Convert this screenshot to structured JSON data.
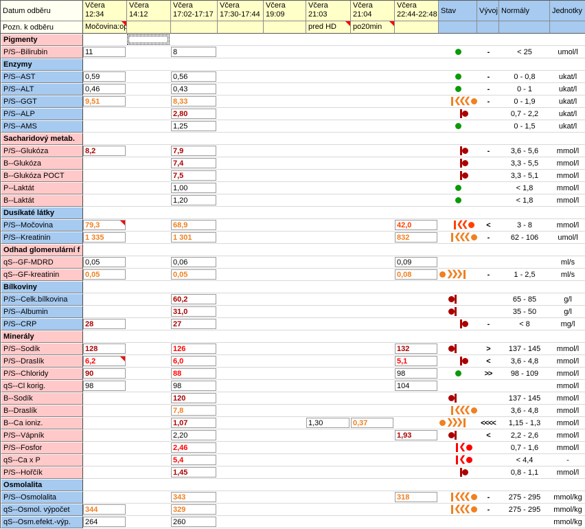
{
  "palette": {
    "black": "#000000",
    "orange": "#f08020",
    "orangered": "#ff4000",
    "red": "#ff0000",
    "darkred": "#aa0000",
    "green": "#0a9a0a",
    "marker": "#ff0000",
    "header_yellow": "#ffffc8",
    "header_blue": "#a6caf0",
    "tint_pink": "#ffc9c9",
    "tint_blue": "#a6caf0"
  },
  "table": {
    "header": {
      "date_label": "Datum odběru",
      "note_label": "Pozn. k odběru",
      "date_columns": [
        {
          "key": "c1",
          "line1": "Včera",
          "line2": "12:34"
        },
        {
          "key": "c2",
          "line1": "Včera",
          "line2": "14:12"
        },
        {
          "key": "c3",
          "line1": "Včera",
          "line2": "17:02-17:17"
        },
        {
          "key": "c4",
          "line1": "Včera",
          "line2": "17:30-17:44"
        },
        {
          "key": "c5",
          "line1": "Včera",
          "line2": "19:09"
        },
        {
          "key": "c6",
          "line1": "Včera",
          "line2": "21:03"
        },
        {
          "key": "c7",
          "line1": "Včera",
          "line2": "21:04"
        },
        {
          "key": "c8",
          "line1": "Včera",
          "line2": "22:44-22:48"
        }
      ],
      "meta_columns": [
        "Stav",
        "Vývoj",
        "Normály",
        "Jednotky"
      ]
    },
    "note_row": {
      "c1": {
        "text": "Močovina:op",
        "marker": true
      },
      "c6": {
        "text": "pred HD",
        "marker": true
      },
      "c7": {
        "text": "po20min",
        "marker": true
      }
    },
    "selection": {
      "row": "Pigmenty",
      "column": "c2"
    },
    "rows": [
      {
        "type": "section",
        "label": "Pigmenty",
        "tint": "pink"
      },
      {
        "type": "analyte",
        "label": "P/S--Bilirubin",
        "tint": "pink",
        "values": {
          "c1": {
            "text": "11",
            "color": "black"
          },
          "c3": {
            "text": "8",
            "color": "black"
          }
        },
        "stav": {
          "style": "ok"
        },
        "vyvoj": "-",
        "normal": "< 25",
        "unit": "umol/l"
      },
      {
        "type": "section",
        "label": "Enzymy",
        "tint": "blue"
      },
      {
        "type": "analyte",
        "label": "P/S--AST",
        "tint": "blue",
        "values": {
          "c1": {
            "text": "0,59",
            "color": "black"
          },
          "c3": {
            "text": "0,56",
            "color": "black"
          }
        },
        "stav": {
          "style": "ok"
        },
        "vyvoj": "-",
        "normal": "0 - 0,8",
        "unit": "ukat/l"
      },
      {
        "type": "analyte",
        "label": "P/S--ALT",
        "tint": "blue",
        "values": {
          "c1": {
            "text": "0,46",
            "color": "black"
          },
          "c3": {
            "text": "0,43",
            "color": "black"
          }
        },
        "stav": {
          "style": "ok"
        },
        "vyvoj": "-",
        "normal": "0 - 1",
        "unit": "ukat/l"
      },
      {
        "type": "analyte",
        "label": "P/S--GGT",
        "tint": "blue",
        "values": {
          "c1": {
            "text": "9,51",
            "color": "orange"
          },
          "c3": {
            "text": "8,33",
            "color": "orange"
          }
        },
        "stav": {
          "style": "gauge",
          "dir": "above",
          "chevrons": 3,
          "color": "orange"
        },
        "vyvoj": "-",
        "normal": "0 - 1,9",
        "unit": "ukat/l"
      },
      {
        "type": "analyte",
        "label": "P/S--ALP",
        "tint": "blue",
        "values": {
          "c3": {
            "text": "2,80",
            "color": "darkred"
          }
        },
        "stav": {
          "style": "gauge",
          "dir": "above",
          "chevrons": 0,
          "color": "darkred"
        },
        "vyvoj": "",
        "normal": "0,7 - 2,2",
        "unit": "ukat/l"
      },
      {
        "type": "analyte",
        "label": "P/S--AMS",
        "tint": "blue",
        "values": {
          "c3": {
            "text": "1,25",
            "color": "black"
          }
        },
        "stav": {
          "style": "ok"
        },
        "vyvoj": "",
        "normal": "0 - 1,5",
        "unit": "ukat/l"
      },
      {
        "type": "section",
        "label": "Sacharidový metab.",
        "tint": "pink"
      },
      {
        "type": "analyte",
        "label": "P/S--Glukóza",
        "tint": "pink",
        "values": {
          "c1": {
            "text": "8,2",
            "color": "darkred"
          },
          "c3": {
            "text": "7,9",
            "color": "darkred"
          }
        },
        "stav": {
          "style": "gauge",
          "dir": "above",
          "chevrons": 0,
          "color": "darkred"
        },
        "vyvoj": "-",
        "normal": "3,6 - 5,6",
        "unit": "mmol/l"
      },
      {
        "type": "analyte",
        "label": "B--Glukóza",
        "tint": "pink",
        "values": {
          "c3": {
            "text": "7,4",
            "color": "darkred"
          }
        },
        "stav": {
          "style": "gauge",
          "dir": "above",
          "chevrons": 0,
          "color": "darkred"
        },
        "vyvoj": "",
        "normal": "3,3 - 5,5",
        "unit": "mmol/l"
      },
      {
        "type": "analyte",
        "label": "B--Glukóza POCT",
        "tint": "pink",
        "values": {
          "c3": {
            "text": "7,5",
            "color": "darkred"
          }
        },
        "stav": {
          "style": "gauge",
          "dir": "above",
          "chevrons": 0,
          "color": "darkred"
        },
        "vyvoj": "",
        "normal": "3,3 - 5,1",
        "unit": "mmol/l"
      },
      {
        "type": "analyte",
        "label": "P--Laktát",
        "tint": "pink",
        "values": {
          "c3": {
            "text": "1,00",
            "color": "black"
          }
        },
        "stav": {
          "style": "ok"
        },
        "vyvoj": "",
        "normal": "< 1,8",
        "unit": "mmol/l"
      },
      {
        "type": "analyte",
        "label": "B--Laktát",
        "tint": "pink",
        "values": {
          "c3": {
            "text": "1,20",
            "color": "black"
          }
        },
        "stav": {
          "style": "ok"
        },
        "vyvoj": "",
        "normal": "< 1,8",
        "unit": "mmol/l"
      },
      {
        "type": "section",
        "label": "Dusíkaté látky",
        "tint": "blue"
      },
      {
        "type": "analyte",
        "label": "P/S--Močovina",
        "tint": "blue",
        "values": {
          "c1": {
            "text": "79,3",
            "color": "orange",
            "marker": true
          },
          "c3": {
            "text": "68,9",
            "color": "orange"
          },
          "c8": {
            "text": "42,0",
            "color": "orangered"
          }
        },
        "stav": {
          "style": "gauge",
          "dir": "above",
          "chevrons": 2,
          "color": "orangered"
        },
        "vyvoj": "<",
        "normal": "3 - 8",
        "unit": "mmol/l"
      },
      {
        "type": "analyte",
        "label": "P/S--Kreatinin",
        "tint": "blue",
        "values": {
          "c1": {
            "text": "1 335",
            "color": "orange"
          },
          "c3": {
            "text": "1 301",
            "color": "orange"
          },
          "c8": {
            "text": "832",
            "color": "orange"
          }
        },
        "stav": {
          "style": "gauge",
          "dir": "above",
          "chevrons": 3,
          "color": "orange"
        },
        "vyvoj": "-",
        "normal": "62 - 106",
        "unit": "umol/l"
      },
      {
        "type": "section",
        "label": "Odhad glomerulární f",
        "tint": "pink"
      },
      {
        "type": "analyte",
        "label": "qS--GF-MDRD",
        "tint": "pink",
        "values": {
          "c1": {
            "text": "0,05",
            "color": "black"
          },
          "c3": {
            "text": "0,06",
            "color": "black"
          },
          "c8": {
            "text": "0,09",
            "color": "black"
          }
        },
        "stav": null,
        "vyvoj": "",
        "normal": "",
        "unit": "ml/s"
      },
      {
        "type": "analyte",
        "label": "qS--GF-kreatinin",
        "tint": "pink",
        "values": {
          "c1": {
            "text": "0,05",
            "color": "orange"
          },
          "c3": {
            "text": "0,05",
            "color": "orange"
          },
          "c8": {
            "text": "0,08",
            "color": "orange"
          }
        },
        "stav": {
          "style": "gauge",
          "dir": "below",
          "chevrons": 3,
          "color": "orange"
        },
        "vyvoj": "-",
        "normal": "1 - 2,5",
        "unit": "ml/s"
      },
      {
        "type": "section",
        "label": "Bílkoviny",
        "tint": "blue"
      },
      {
        "type": "analyte",
        "label": "P/S--Celk.bílkovina",
        "tint": "blue",
        "values": {
          "c3": {
            "text": "60,2",
            "color": "darkred"
          }
        },
        "stav": {
          "style": "gauge",
          "dir": "below",
          "chevrons": 0,
          "color": "darkred"
        },
        "vyvoj": "",
        "normal": "65 - 85",
        "unit": "g/l"
      },
      {
        "type": "analyte",
        "label": "P/S--Albumin",
        "tint": "blue",
        "values": {
          "c3": {
            "text": "31,0",
            "color": "darkred"
          }
        },
        "stav": {
          "style": "gauge",
          "dir": "below",
          "chevrons": 0,
          "color": "darkred"
        },
        "vyvoj": "",
        "normal": "35 - 50",
        "unit": "g/l"
      },
      {
        "type": "analyte",
        "label": "P/S--CRP",
        "tint": "blue",
        "values": {
          "c1": {
            "text": "28",
            "color": "darkred"
          },
          "c3": {
            "text": "27",
            "color": "darkred"
          }
        },
        "stav": {
          "style": "gauge",
          "dir": "above",
          "chevrons": 0,
          "color": "darkred"
        },
        "vyvoj": "-",
        "normal": "< 8",
        "unit": "mg/l"
      },
      {
        "type": "section",
        "label": "Minerály",
        "tint": "pink"
      },
      {
        "type": "analyte",
        "label": "P/S--Sodík",
        "tint": "pink",
        "values": {
          "c1": {
            "text": "128",
            "color": "darkred"
          },
          "c3": {
            "text": "126",
            "color": "red"
          },
          "c8": {
            "text": "132",
            "color": "darkred"
          }
        },
        "stav": {
          "style": "gauge",
          "dir": "below",
          "chevrons": 0,
          "color": "darkred"
        },
        "vyvoj": ">",
        "normal": "137 - 145",
        "unit": "mmol/l"
      },
      {
        "type": "analyte",
        "label": "P/S--Draslík",
        "tint": "pink",
        "values": {
          "c1": {
            "text": "6,2",
            "color": "red",
            "marker": true
          },
          "c3": {
            "text": "6,0",
            "color": "red"
          },
          "c8": {
            "text": "5,1",
            "color": "red"
          }
        },
        "stav": {
          "style": "gauge",
          "dir": "above",
          "chevrons": 0,
          "color": "darkred"
        },
        "vyvoj": "<",
        "normal": "3,6 - 4,8",
        "unit": "mmol/l"
      },
      {
        "type": "analyte",
        "label": "P/S--Chloridy",
        "tint": "pink",
        "values": {
          "c1": {
            "text": "90",
            "color": "darkred"
          },
          "c3": {
            "text": "88",
            "color": "red"
          },
          "c8": {
            "text": "98",
            "color": "black"
          }
        },
        "stav": {
          "style": "ok"
        },
        "vyvoj": ">>",
        "normal": "98 - 109",
        "unit": "mmol/l"
      },
      {
        "type": "analyte",
        "label": "qS--Cl korig.",
        "tint": "pink",
        "values": {
          "c1": {
            "text": "98",
            "color": "black"
          },
          "c3": {
            "text": "98",
            "color": "black"
          },
          "c8": {
            "text": "104",
            "color": "black"
          }
        },
        "stav": null,
        "vyvoj": "",
        "normal": "",
        "unit": "mmol/l"
      },
      {
        "type": "analyte",
        "label": "B--Sodík",
        "tint": "pink",
        "values": {
          "c3": {
            "text": "120",
            "color": "darkred"
          }
        },
        "stav": {
          "style": "gauge",
          "dir": "below",
          "chevrons": 0,
          "color": "darkred"
        },
        "vyvoj": "",
        "normal": "137 - 145",
        "unit": "mmol/l"
      },
      {
        "type": "analyte",
        "label": "B--Draslík",
        "tint": "pink",
        "values": {
          "c3": {
            "text": "7,8",
            "color": "orange"
          }
        },
        "stav": {
          "style": "gauge",
          "dir": "above",
          "chevrons": 3,
          "color": "orange"
        },
        "vyvoj": "",
        "normal": "3,6 - 4,8",
        "unit": "mmol/l"
      },
      {
        "type": "analyte",
        "label": "B--Ca ioniz.",
        "tint": "pink",
        "values": {
          "c3": {
            "text": "1,07",
            "color": "darkred"
          },
          "c6": {
            "text": "1,30",
            "color": "black"
          },
          "c7": {
            "text": "0,37",
            "color": "orange"
          }
        },
        "stav": {
          "style": "gauge",
          "dir": "below",
          "chevrons": 3,
          "color": "orange"
        },
        "vyvoj": "<<<<",
        "normal": "1,15 - 1,3",
        "unit": "mmol/l"
      },
      {
        "type": "analyte",
        "label": "P/S--Vápník",
        "tint": "pink",
        "values": {
          "c3": {
            "text": "2,20",
            "color": "black"
          },
          "c8": {
            "text": "1,93",
            "color": "darkred"
          }
        },
        "stav": {
          "style": "gauge",
          "dir": "below",
          "chevrons": 0,
          "color": "darkred"
        },
        "vyvoj": "<",
        "normal": "2,2 - 2,6",
        "unit": "mmol/l"
      },
      {
        "type": "analyte",
        "label": "P/S--Fosfor",
        "tint": "pink",
        "values": {
          "c3": {
            "text": "2,46",
            "color": "red"
          }
        },
        "stav": {
          "style": "gauge",
          "dir": "above",
          "chevrons": 1,
          "color": "red"
        },
        "vyvoj": "",
        "normal": "0,7 - 1,6",
        "unit": "mmol/l"
      },
      {
        "type": "analyte",
        "label": "qS--Ca x P",
        "tint": "pink",
        "values": {
          "c3": {
            "text": "5,4",
            "color": "red"
          }
        },
        "stav": {
          "style": "gauge",
          "dir": "above",
          "chevrons": 1,
          "color": "red"
        },
        "vyvoj": "",
        "normal": "< 4,4",
        "unit": "-"
      },
      {
        "type": "analyte",
        "label": "P/S--Hořčík",
        "tint": "pink",
        "values": {
          "c3": {
            "text": "1,45",
            "color": "darkred"
          }
        },
        "stav": {
          "style": "gauge",
          "dir": "above",
          "chevrons": 0,
          "color": "darkred"
        },
        "vyvoj": "",
        "normal": "0,8 - 1,1",
        "unit": "mmol/l"
      },
      {
        "type": "section",
        "label": "Osmolalita",
        "tint": "blue"
      },
      {
        "type": "analyte",
        "label": "P/S--Osmolalita",
        "tint": "blue",
        "values": {
          "c3": {
            "text": "343",
            "color": "orange"
          },
          "c8": {
            "text": "318",
            "color": "orange"
          }
        },
        "stav": {
          "style": "gauge",
          "dir": "above",
          "chevrons": 3,
          "color": "orange"
        },
        "vyvoj": "-",
        "normal": "275 - 295",
        "unit": "mmol/kg"
      },
      {
        "type": "analyte",
        "label": "qS--Osmol. výpočet",
        "tint": "blue",
        "values": {
          "c1": {
            "text": "344",
            "color": "orange"
          },
          "c3": {
            "text": "329",
            "color": "orange"
          }
        },
        "stav": {
          "style": "gauge",
          "dir": "above",
          "chevrons": 3,
          "color": "orange"
        },
        "vyvoj": "-",
        "normal": "275 - 295",
        "unit": "mmol/kg"
      },
      {
        "type": "analyte",
        "label": "qS--Osm.efekt.-výp.",
        "tint": "blue",
        "values": {
          "c1": {
            "text": "264",
            "color": "black"
          },
          "c3": {
            "text": "260",
            "color": "black"
          }
        },
        "stav": null,
        "vyvoj": "",
        "normal": "",
        "unit": "mmol/kg"
      }
    ]
  }
}
